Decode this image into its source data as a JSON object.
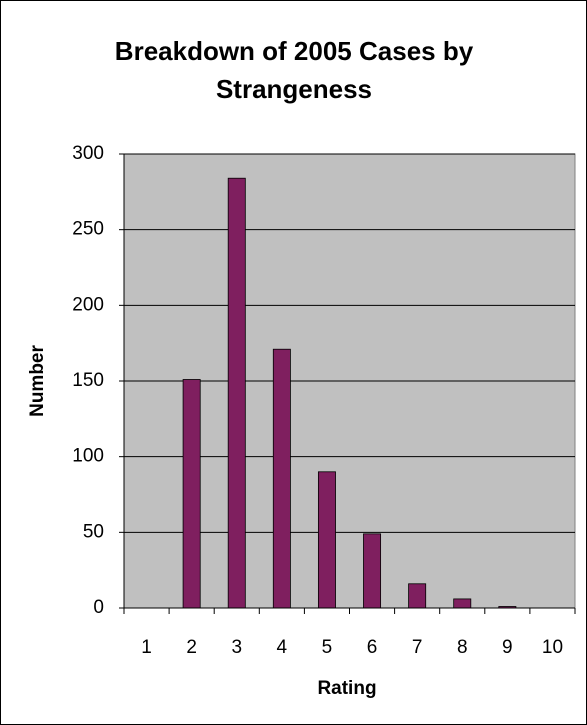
{
  "chart_data": {
    "type": "bar",
    "title": "Breakdown of 2005 Cases by Strangeness",
    "x_label": "Rating",
    "y_label": "Number",
    "categories": [
      "1",
      "2",
      "3",
      "4",
      "5",
      "6",
      "7",
      "8",
      "9",
      "10"
    ],
    "values": [
      0,
      151,
      284,
      171,
      90,
      49,
      16,
      6,
      1,
      0
    ],
    "color": "#7f1f5f",
    "ylim": [
      0,
      300
    ],
    "yticks": [
      0,
      50,
      100,
      150,
      200,
      250,
      300
    ],
    "grid": true
  }
}
